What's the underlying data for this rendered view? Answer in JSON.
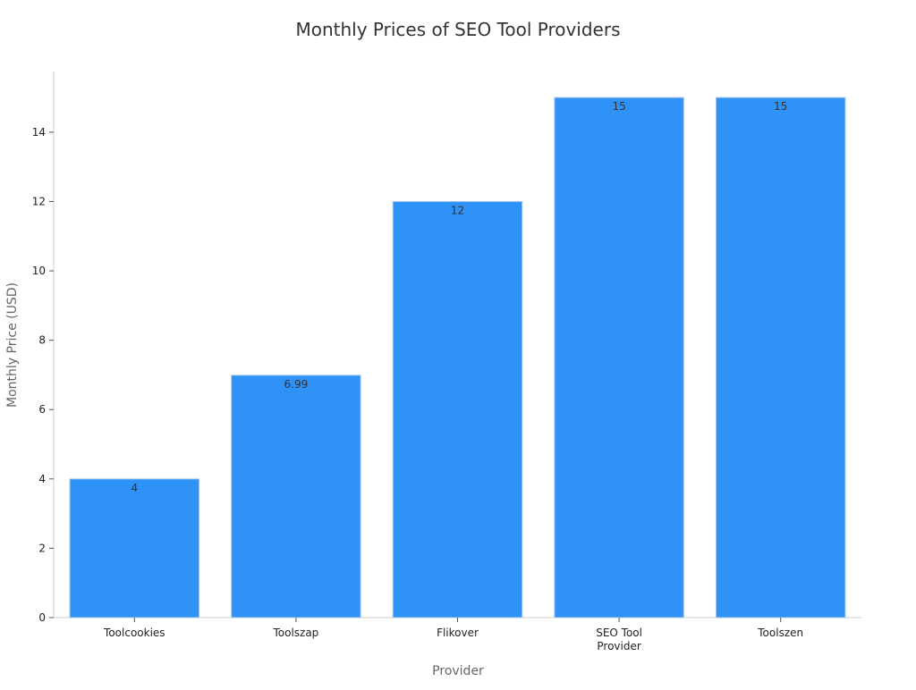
{
  "chart_data": {
    "type": "bar",
    "title": "Monthly Prices of SEO Tool Providers",
    "xlabel": "Provider",
    "ylabel": "Monthly Price (USD)",
    "categories": [
      "Toolcookies",
      "Toolszap",
      "Flikover",
      "SEO Tool Provider",
      "Toolszen"
    ],
    "category_lines": [
      [
        "Toolcookies"
      ],
      [
        "Toolszap"
      ],
      [
        "Flikover"
      ],
      [
        "SEO Tool",
        "Provider"
      ],
      [
        "Toolszen"
      ]
    ],
    "values": [
      4,
      6.99,
      12,
      15,
      15
    ],
    "value_labels": [
      "4",
      "6.99",
      "12",
      "15",
      "15"
    ],
    "ylim": [
      0,
      15.75
    ],
    "yticks": [
      0,
      2,
      4,
      6,
      8,
      10,
      12,
      14
    ],
    "grid": false,
    "legend": "none"
  },
  "colors": {
    "bar": "#2f92f7",
    "bar_edge": "#a8c8e8",
    "axis": "#cccccc",
    "title": "#333333",
    "label": "#666666",
    "tick": "#222222",
    "value_label": "#333333"
  }
}
